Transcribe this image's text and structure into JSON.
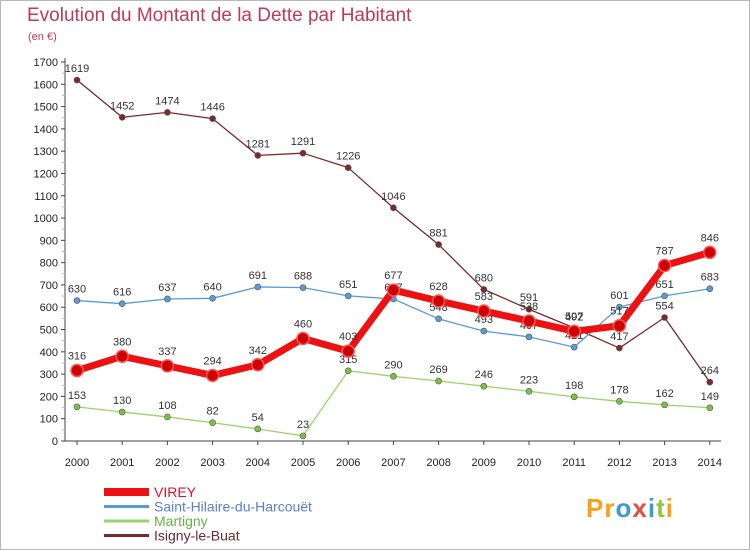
{
  "title": "Evolution du Montant de la Dette par Habitant",
  "unit": "(en €)",
  "logo": {
    "text": "Proxiti",
    "letters": [
      {
        "ch": "P",
        "color": "#f7a11a"
      },
      {
        "ch": "r",
        "color": "#f7a11a"
      },
      {
        "ch": "o",
        "color": "#3a9ad9"
      },
      {
        "ch": "x",
        "color": "#e84c3d"
      },
      {
        "ch": "i",
        "color": "#3a9ad9"
      },
      {
        "ch": "t",
        "color": "#8dc63f"
      },
      {
        "ch": "i",
        "color": "#f7a11a"
      }
    ]
  },
  "chart_data": {
    "type": "line",
    "title": "Evolution du Montant de la Dette par Habitant",
    "ylabel": "(en €)",
    "xlabel": "",
    "ylim": [
      0,
      1700
    ],
    "yticks": [
      0,
      100,
      200,
      300,
      400,
      500,
      600,
      700,
      800,
      900,
      1000,
      1100,
      1200,
      1300,
      1400,
      1500,
      1600,
      1700
    ],
    "categories": [
      "2000",
      "2001",
      "2002",
      "2003",
      "2004",
      "2005",
      "2006",
      "2007",
      "2008",
      "2009",
      "2010",
      "2011",
      "2012",
      "2013",
      "2014"
    ],
    "grid": false,
    "legend_position": "bottom-left",
    "series": [
      {
        "name": "Isigny-le-Buat",
        "color": "#7a2a2a",
        "marker": "#7a2a2a",
        "width": 1.3,
        "radius": 3,
        "labels": [
          "1619",
          "1452",
          "1474",
          "1446",
          "1281",
          "1291",
          "1226",
          "1046",
          "881",
          "680",
          "591",
          "507",
          "417",
          "554",
          "264"
        ],
        "values": [
          1619,
          1452,
          1474,
          1446,
          1281,
          1291,
          1226,
          1046,
          881,
          680,
          591,
          507,
          417,
          554,
          264
        ]
      },
      {
        "name": "Saint-Hilaire-du-Harcouët",
        "color": "#5b9bd5",
        "marker": "#5b9bd5",
        "width": 1.3,
        "radius": 3,
        "labels": [
          "630",
          "616",
          "637",
          "640",
          "691",
          "688",
          "651",
          "637",
          "548",
          "493",
          "467",
          "421",
          "601",
          "651",
          "683"
        ],
        "values": [
          630,
          616,
          637,
          640,
          691,
          688,
          651,
          637,
          548,
          493,
          467,
          421,
          601,
          651,
          683
        ]
      },
      {
        "name": "Martigny",
        "color": "#99d36a",
        "marker": "#7cc242",
        "width": 1.3,
        "radius": 3,
        "labels": [
          "153",
          "130",
          "108",
          "82",
          "54",
          "23",
          "315",
          "290",
          "269",
          "246",
          "223",
          "198",
          "178",
          "162",
          "149"
        ],
        "values": [
          153,
          130,
          108,
          82,
          54,
          23,
          315,
          290,
          269,
          246,
          223,
          198,
          178,
          162,
          149
        ]
      },
      {
        "name": "VIREY",
        "color": "#ee1111",
        "marker": "#cc0000",
        "width": 7,
        "radius": 6,
        "labels": [
          "316",
          "380",
          "337",
          "294",
          "342",
          "460",
          "403",
          "677",
          "628",
          "583",
          "538",
          "492",
          "517",
          "787",
          "846"
        ],
        "values": [
          316,
          380,
          337,
          294,
          342,
          460,
          403,
          677,
          628,
          583,
          538,
          492,
          517,
          787,
          846
        ]
      }
    ],
    "legend": [
      {
        "name": "VIREY",
        "color": "#ee1111",
        "text_color": "#dd1133",
        "width": 8
      },
      {
        "name": "Saint-Hilaire-du-Harcouët",
        "color": "#5b9bd5",
        "text_color": "#5b7fc8",
        "width": 3
      },
      {
        "name": "Martigny",
        "color": "#99d36a",
        "text_color": "#6ab04c",
        "width": 3
      },
      {
        "name": "Isigny-le-Buat",
        "color": "#7a2a2a",
        "text_color": "#6a2a3a",
        "width": 3
      }
    ]
  }
}
